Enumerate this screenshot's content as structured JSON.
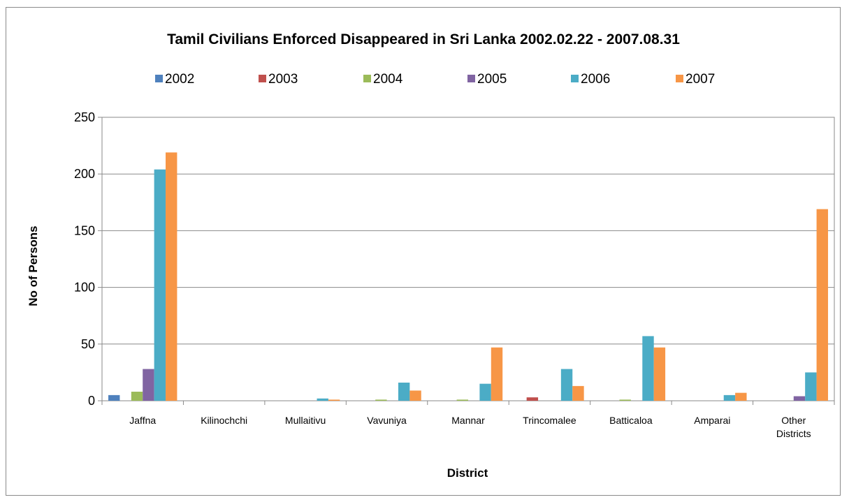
{
  "chart_data": {
    "type": "bar",
    "title": "Tamil Civilians Enforced Disappeared in Sri Lanka 2002.02.22 - 2007.08.31",
    "xlabel": "District",
    "ylabel": "No of Persons",
    "ylim": [
      0,
      250
    ],
    "yticks": [
      "0",
      "50",
      "100",
      "150",
      "200",
      "250"
    ],
    "grid": true,
    "legend": "top",
    "categories": [
      [
        "Jaffna"
      ],
      [
        "Kilinochchi"
      ],
      [
        "Mullaitivu"
      ],
      [
        "Vavuniya"
      ],
      [
        "Mannar"
      ],
      [
        "Trincomalee"
      ],
      [
        "Batticaloa"
      ],
      [
        "Amparai"
      ],
      [
        "Other",
        "Districts"
      ]
    ],
    "series": [
      {
        "name": "2002",
        "color": "#4f81bd",
        "values": [
          5,
          0,
          0,
          0,
          0,
          0,
          0,
          0,
          0
        ]
      },
      {
        "name": "2003",
        "color": "#c0504d",
        "values": [
          0,
          0,
          0,
          0,
          0,
          3,
          0,
          0,
          0
        ]
      },
      {
        "name": "2004",
        "color": "#9bbb59",
        "values": [
          8,
          0,
          0,
          1,
          1,
          0,
          1,
          0,
          0
        ]
      },
      {
        "name": "2005",
        "color": "#8064a2",
        "values": [
          28,
          0,
          0,
          0,
          0,
          0,
          0,
          0,
          4
        ]
      },
      {
        "name": "2006",
        "color": "#4bacc6",
        "values": [
          204,
          0,
          2,
          16,
          15,
          28,
          57,
          5,
          25
        ]
      },
      {
        "name": "2007",
        "color": "#f79646",
        "values": [
          219,
          0,
          1,
          9,
          47,
          13,
          47,
          7,
          169
        ]
      }
    ]
  }
}
